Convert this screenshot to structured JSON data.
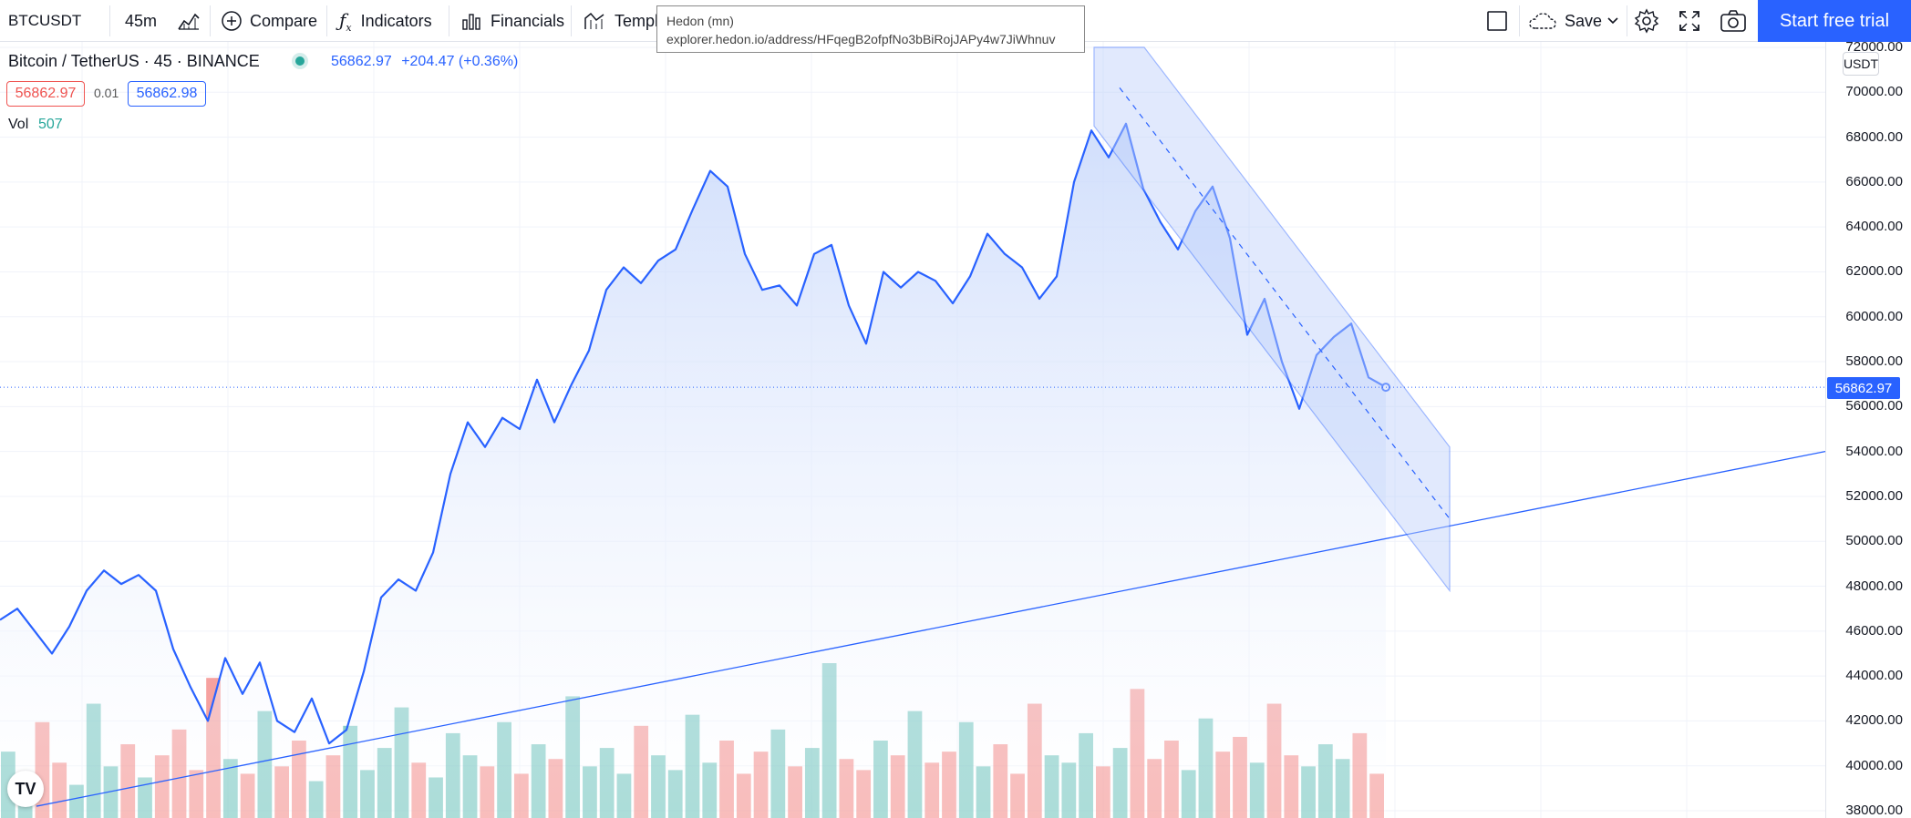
{
  "toolbar": {
    "symbol": "BTCUSDT",
    "interval": "45m",
    "compare_label": "Compare",
    "indicators_label": "Indicators",
    "financials_label": "Financials",
    "templates_label": "Templ",
    "save_label": "Save",
    "trial_label": "Start free trial"
  },
  "tooltip": {
    "title": "Hedon (mn)",
    "url": "explorer.hedon.io/address/HFqegB2ofpfNo3bBiRojJAPy4w7JiWhnuv"
  },
  "legend": {
    "title": "Bitcoin / TetherUS · 45 · BINANCE",
    "price": "56862.97",
    "change": "+204.47 (+0.36%)",
    "bid": "56862.97",
    "spread": "0.01",
    "ask": "56862.98",
    "vol_label": "Vol",
    "vol_value": "507"
  },
  "price_axis": {
    "currency": "USDT",
    "current_price": "56862.97",
    "ticks": [
      "72000.00",
      "70000.00",
      "68000.00",
      "66000.00",
      "64000.00",
      "62000.00",
      "60000.00",
      "58000.00",
      "56000.00",
      "54000.00",
      "52000.00",
      "50000.00",
      "48000.00",
      "46000.00",
      "44000.00",
      "42000.00",
      "40000.00",
      "38000.00"
    ]
  },
  "colors": {
    "line": "#2962ff",
    "area": "#dbe6fd",
    "channel": "#bdd0fb",
    "vol_up": "#26a69a",
    "vol_down": "#ef5350",
    "accent": "#2962ff"
  },
  "chart_data": {
    "type": "area",
    "series": [
      {
        "values": [
          46500,
          47000,
          46000,
          45000,
          46200,
          47800,
          48700,
          48100,
          48500,
          47800,
          45200,
          43500,
          42000,
          44800,
          43200,
          44600,
          42000,
          41500,
          43000,
          41000,
          41600,
          44200,
          47500,
          48300,
          47800,
          49500,
          53000,
          55300,
          54200,
          55500,
          55000,
          57200,
          55300,
          57000,
          58500,
          61200,
          62200,
          61500,
          62500,
          63000,
          64800,
          66500,
          65800,
          62800,
          61200,
          61400,
          60500,
          62800,
          63200,
          60500,
          58800,
          62000,
          61300,
          62000,
          61600,
          60600,
          61800,
          63700,
          62800,
          62200,
          60800,
          61800,
          66000,
          68300,
          67100,
          68600,
          65700,
          64200,
          63000,
          64700,
          65800,
          63500,
          59200,
          60800,
          58000,
          55900,
          58300,
          59100,
          59700,
          57300,
          56863
        ]
      }
    ],
    "volume": [
      180,
      120,
      260,
      150,
      90,
      310,
      140,
      200,
      110,
      170,
      240,
      130,
      380,
      160,
      120,
      290,
      140,
      210,
      100,
      170,
      250,
      130,
      190,
      300,
      150,
      110,
      230,
      170,
      140,
      260,
      120,
      200,
      160,
      330,
      140,
      190,
      120,
      250,
      170,
      130,
      280,
      150,
      210,
      120,
      180,
      240,
      140,
      190,
      420,
      160,
      130,
      210,
      170,
      290,
      150,
      180,
      260,
      140,
      200,
      120,
      310,
      170,
      150,
      230,
      140,
      190,
      350,
      160,
      210,
      130,
      270,
      180,
      220,
      150,
      310,
      170,
      140,
      200,
      160,
      230,
      120
    ],
    "ylim": [
      38000,
      72000
    ]
  }
}
